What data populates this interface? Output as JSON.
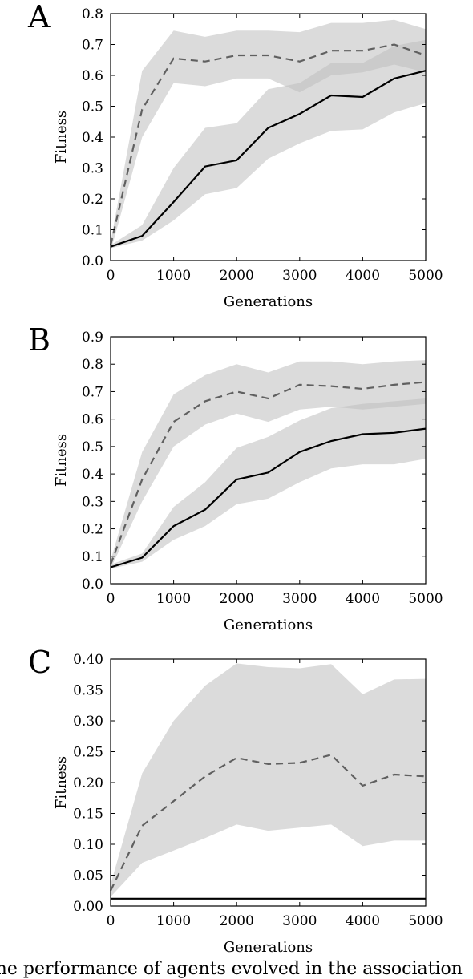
{
  "caption": "The performance of agents evolved in the association",
  "colors": {
    "band": "#d9d9d9",
    "band_overlap": "#bdbdbd",
    "dashed_line": "#606060",
    "solid_line": "#000000"
  },
  "chart_data": [
    {
      "panel": "A",
      "type": "line",
      "xlabel": "Generations",
      "ylabel": "Fitness",
      "xlim": [
        0,
        5000
      ],
      "ylim": [
        0,
        0.8
      ],
      "xticks": [
        "0",
        "1000",
        "2000",
        "3000",
        "4000",
        "5000"
      ],
      "yticks": [
        "0.0",
        "0.1",
        "0.2",
        "0.3",
        "0.4",
        "0.5",
        "0.6",
        "0.7",
        "0.8"
      ],
      "x": [
        0,
        500,
        1000,
        1500,
        2000,
        2500,
        3000,
        3500,
        4000,
        4500,
        5000
      ],
      "series": [
        {
          "style": "dashed",
          "values": [
            0.05,
            0.49,
            0.655,
            0.645,
            0.665,
            0.665,
            0.645,
            0.68,
            0.68,
            0.7,
            0.665
          ],
          "lower": [
            0.03,
            0.4,
            0.575,
            0.565,
            0.59,
            0.59,
            0.545,
            0.6,
            0.61,
            0.635,
            0.61
          ],
          "upper": [
            0.06,
            0.615,
            0.745,
            0.725,
            0.745,
            0.745,
            0.74,
            0.77,
            0.77,
            0.78,
            0.75
          ]
        },
        {
          "style": "solid",
          "values": [
            0.045,
            0.08,
            0.19,
            0.305,
            0.325,
            0.43,
            0.475,
            0.535,
            0.53,
            0.59,
            0.615
          ],
          "lower": [
            0.04,
            0.065,
            0.13,
            0.215,
            0.235,
            0.33,
            0.38,
            0.42,
            0.425,
            0.48,
            0.51
          ],
          "upper": [
            0.05,
            0.115,
            0.3,
            0.43,
            0.445,
            0.555,
            0.575,
            0.64,
            0.64,
            0.695,
            0.715
          ]
        }
      ]
    },
    {
      "panel": "B",
      "type": "line",
      "xlabel": "Generations",
      "ylabel": "Fitness",
      "xlim": [
        0,
        5000
      ],
      "ylim": [
        0,
        0.9
      ],
      "xticks": [
        "0",
        "1000",
        "2000",
        "3000",
        "4000",
        "5000"
      ],
      "yticks": [
        "0.0",
        "0.1",
        "0.2",
        "0.3",
        "0.4",
        "0.5",
        "0.6",
        "0.7",
        "0.8",
        "0.9"
      ],
      "x": [
        0,
        500,
        1000,
        1500,
        2000,
        2500,
        3000,
        3500,
        4000,
        4500,
        5000
      ],
      "series": [
        {
          "style": "dashed",
          "values": [
            0.07,
            0.38,
            0.59,
            0.665,
            0.7,
            0.675,
            0.725,
            0.72,
            0.71,
            0.725,
            0.735
          ],
          "lower": [
            0.055,
            0.3,
            0.5,
            0.58,
            0.62,
            0.59,
            0.635,
            0.645,
            0.635,
            0.645,
            0.655
          ],
          "upper": [
            0.085,
            0.48,
            0.69,
            0.76,
            0.8,
            0.77,
            0.81,
            0.81,
            0.8,
            0.81,
            0.815
          ]
        },
        {
          "style": "solid",
          "values": [
            0.06,
            0.095,
            0.21,
            0.27,
            0.38,
            0.405,
            0.48,
            0.52,
            0.545,
            0.55,
            0.565
          ],
          "lower": [
            0.055,
            0.08,
            0.16,
            0.21,
            0.29,
            0.31,
            0.37,
            0.42,
            0.435,
            0.435,
            0.455
          ],
          "upper": [
            0.07,
            0.11,
            0.28,
            0.37,
            0.495,
            0.535,
            0.595,
            0.64,
            0.655,
            0.665,
            0.675
          ]
        }
      ]
    },
    {
      "panel": "C",
      "type": "line",
      "xlabel": "Generations",
      "ylabel": "Fitness",
      "xlim": [
        0,
        5000
      ],
      "ylim": [
        0,
        0.4
      ],
      "xticks": [
        "0",
        "1000",
        "2000",
        "3000",
        "4000",
        "5000"
      ],
      "yticks": [
        "0.00",
        "0.05",
        "0.10",
        "0.15",
        "0.20",
        "0.25",
        "0.30",
        "0.35",
        "0.40"
      ],
      "x": [
        0,
        500,
        1000,
        1500,
        2000,
        2500,
        3000,
        3500,
        4000,
        4500,
        5000
      ],
      "series": [
        {
          "style": "dashed",
          "values": [
            0.025,
            0.13,
            0.17,
            0.21,
            0.24,
            0.23,
            0.232,
            0.245,
            0.195,
            0.213,
            0.21
          ],
          "lower": [
            0.015,
            0.07,
            0.09,
            0.11,
            0.132,
            0.122,
            0.127,
            0.132,
            0.097,
            0.106,
            0.106
          ],
          "upper": [
            0.035,
            0.215,
            0.3,
            0.357,
            0.393,
            0.387,
            0.385,
            0.392,
            0.343,
            0.367,
            0.368
          ]
        },
        {
          "style": "solid",
          "values": [
            0.012,
            0.012,
            0.012,
            0.012,
            0.012,
            0.012,
            0.012,
            0.012,
            0.012,
            0.012,
            0.012
          ],
          "lower": null,
          "upper": null
        }
      ]
    }
  ]
}
